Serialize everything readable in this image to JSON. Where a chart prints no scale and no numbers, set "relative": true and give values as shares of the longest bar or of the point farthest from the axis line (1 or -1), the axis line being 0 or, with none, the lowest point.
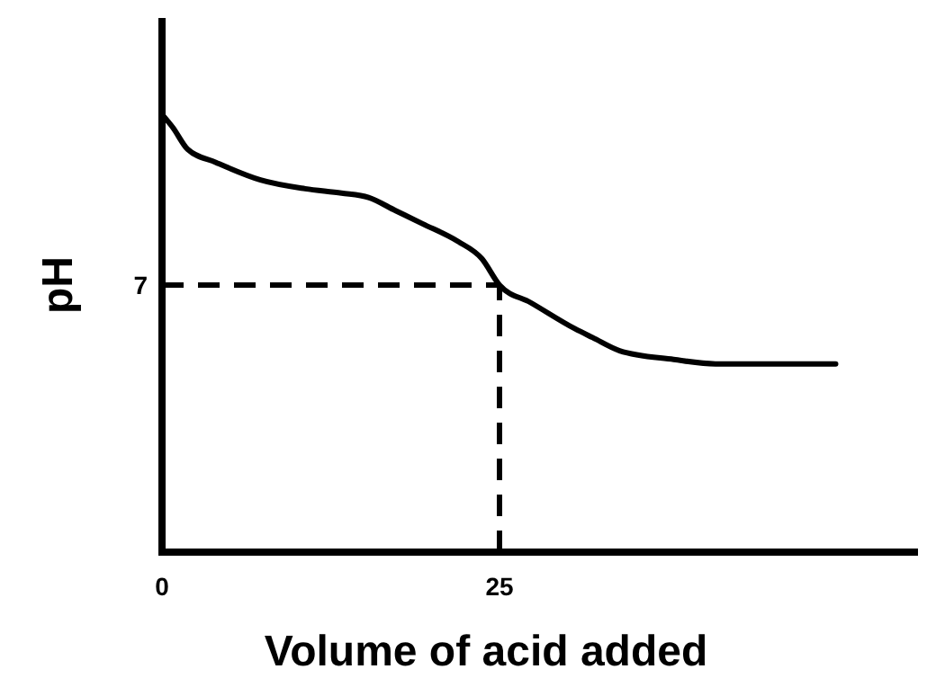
{
  "chart_data": {
    "type": "line",
    "xlabel": "Volume of acid added",
    "ylabel": "pH",
    "xlim": [
      0,
      56
    ],
    "relative": true,
    "xticks": [
      0,
      25
    ],
    "annotations": [
      "7"
    ],
    "marker": "none",
    "line_style": "solid",
    "series": [
      {
        "color": "#000000",
        "x": [
          0,
          0.8,
          1.9,
          4,
          7.3,
          10.6,
          13.3,
          15.3,
          17.3,
          19.3,
          21.9,
          23.7,
          25,
          27.3,
          30.6,
          31.9,
          33.9,
          37.9,
          41,
          43.2,
          49.9
        ],
        "values": [
          1,
          0.97,
          0.92,
          0.89,
          0.85,
          0.83,
          0.82,
          0.81,
          0.78,
          0.75,
          0.71,
          0.67,
          0.61,
          0.57,
          0.51,
          0.49,
          0.46,
          0.44,
          0.43,
          0.43,
          0.43
        ]
      }
    ],
    "ref_lines": [
      {
        "axis": "y",
        "value": 0.61,
        "color": "#000000",
        "line_style": "dashed"
      },
      {
        "axis": "x",
        "value": 25,
        "color": "#000000",
        "line_style": "dashed"
      }
    ]
  }
}
